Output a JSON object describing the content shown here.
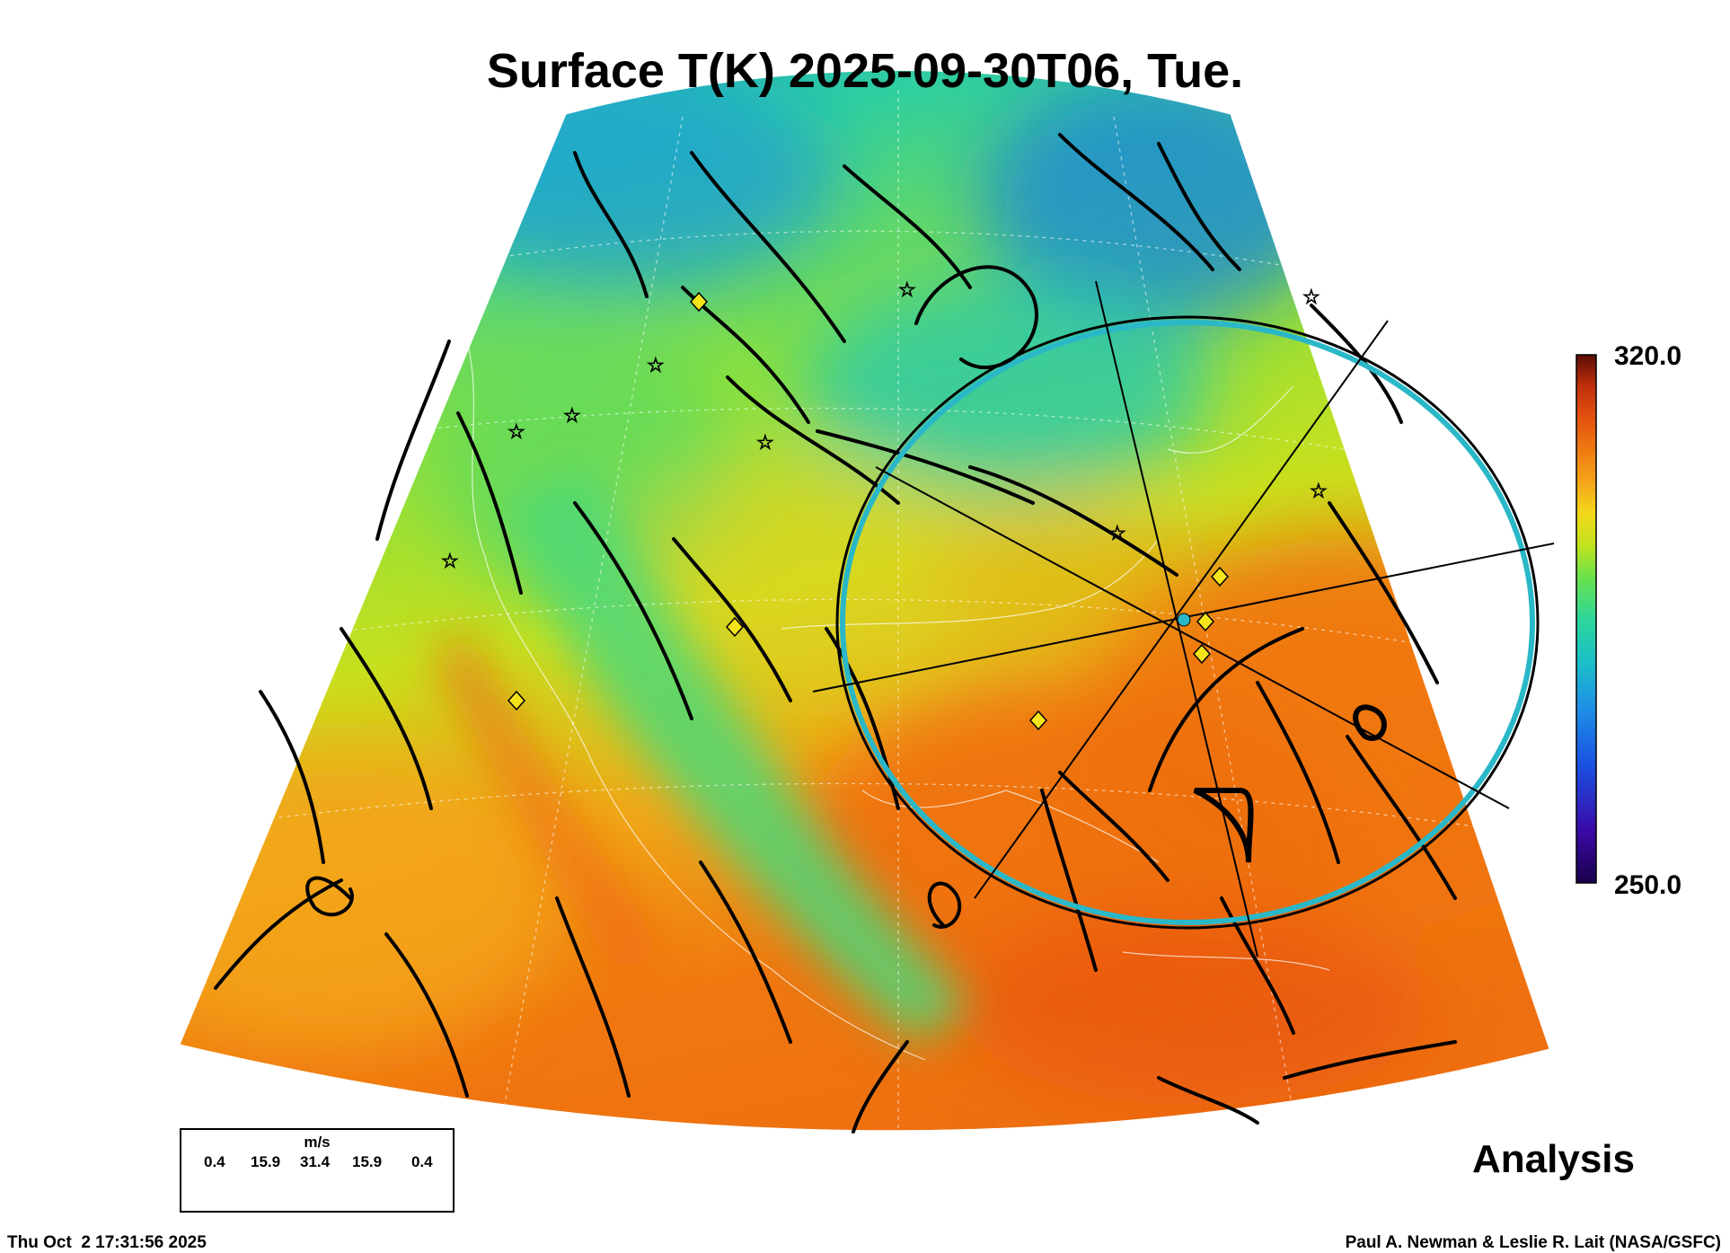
{
  "title": "Surface T(K) 2025-09-30T06, Tue.",
  "colorbar": {
    "max_label": "320.0",
    "min_label": "250.0",
    "range": [
      250.0,
      320.0
    ],
    "colors": [
      "#1a004a",
      "#3a0aa8",
      "#1a4fe0",
      "#1e8fe6",
      "#1cc0c8",
      "#2ed69a",
      "#6be24a",
      "#c2e21e",
      "#f2d81a",
      "#f5a41a",
      "#ee7a12",
      "#e4520e",
      "#c0300c",
      "#801808",
      "#5a0c04"
    ]
  },
  "wind_legend": {
    "unit": "m/s",
    "values": [
      "0.4",
      "15.9",
      "31.4",
      "15.9",
      "0.4"
    ]
  },
  "analysis_label": "Analysis",
  "timestamp": "Thu Oct  2 17:31:56 2025",
  "credit": "Paul A. Newman & Leslie R. Lait (NASA/GSFC)",
  "colors": {
    "warm": "#f07810",
    "mild": "#9ee030",
    "cool": "#34d096",
    "cold": "#1e9ad8",
    "ring": "#2ab8c8",
    "marker_diamond": "#f5e41a",
    "marker_star": "#ffffff"
  },
  "markers": {
    "diamond_count": 7,
    "star_count": 9
  }
}
